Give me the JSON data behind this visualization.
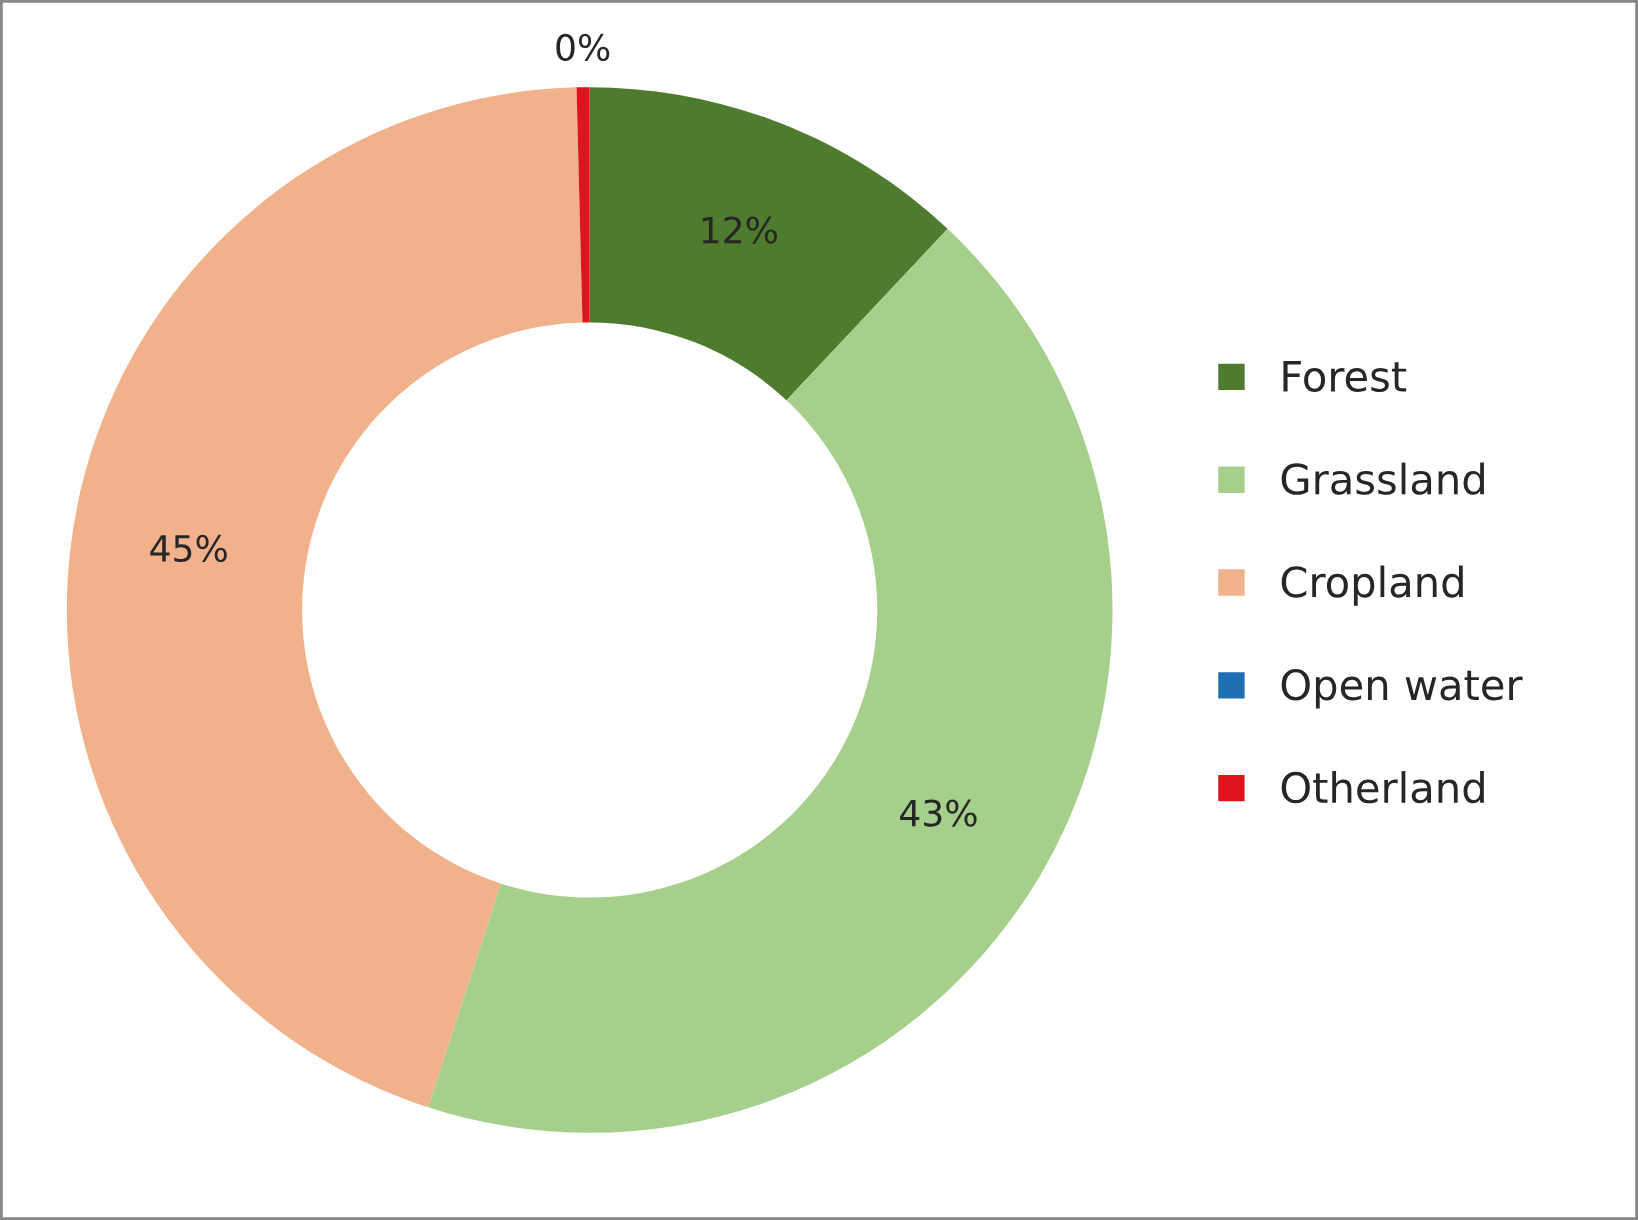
{
  "chart_data": {
    "type": "donut",
    "categories": [
      "Forest",
      "Grassland",
      "Cropland",
      "Open water",
      "Otherland"
    ],
    "values": [
      12,
      43,
      44.6,
      0,
      0.4
    ],
    "value_labels": [
      "12%",
      "43%",
      "45%",
      null,
      "0%"
    ],
    "colors": [
      "#4f7b2f",
      "#a5cf8b",
      "#f1b28b",
      "#1f6fb4",
      "#e0141c"
    ],
    "legend": "right"
  }
}
